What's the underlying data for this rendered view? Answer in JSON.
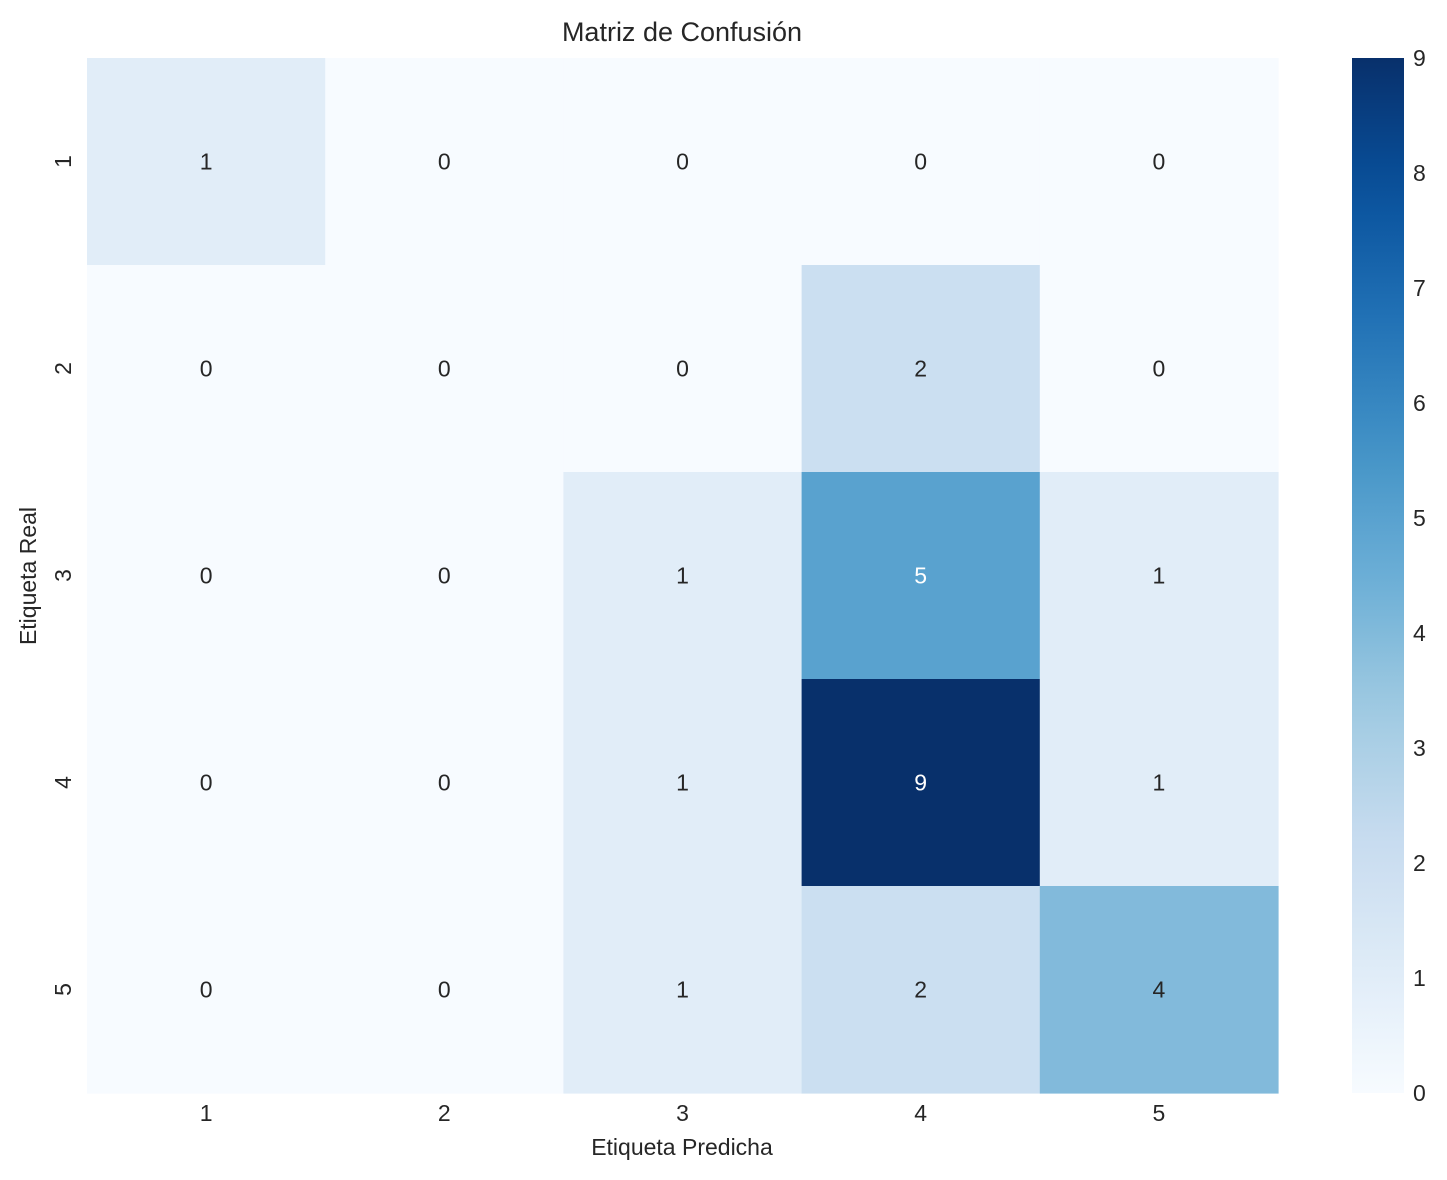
{
  "chart_data": {
    "type": "heatmap",
    "title": "Matriz de Confusión",
    "xlabel": "Etiqueta Predicha",
    "ylabel": "Etiqueta Real",
    "x_categories": [
      "1",
      "2",
      "3",
      "4",
      "5"
    ],
    "y_categories": [
      "1",
      "2",
      "3",
      "4",
      "5"
    ],
    "values": [
      [
        1,
        0,
        0,
        0,
        0
      ],
      [
        0,
        0,
        0,
        2,
        0
      ],
      [
        0,
        0,
        1,
        5,
        1
      ],
      [
        0,
        0,
        1,
        9,
        1
      ],
      [
        0,
        0,
        1,
        2,
        4
      ]
    ],
    "colormap": "Blues",
    "color_range": [
      0,
      9
    ],
    "colorbar_ticks": [
      "0",
      "1",
      "2",
      "3",
      "4",
      "5",
      "6",
      "7",
      "8",
      "9"
    ],
    "annotations": true,
    "grid": false
  }
}
